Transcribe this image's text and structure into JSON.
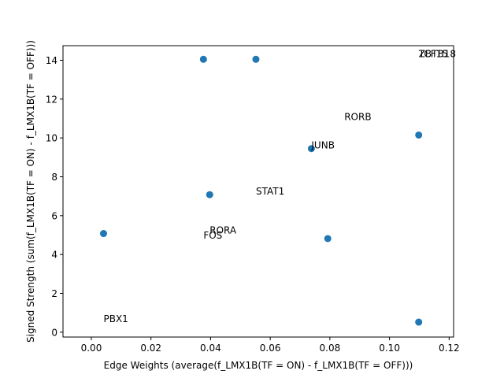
{
  "chart_data": {
    "type": "scatter",
    "title": "",
    "xlabel": "Edge Weights (average(f_LMX1B(TF = ON) - f_LMX1B(TF = OFF)))",
    "ylabel": "Signed Strength (sum(f_LMX1B(TF = ON) - f_LMX1B(TF = OFF)))",
    "xlim": [
      -0.0095,
      0.1215
    ],
    "ylim": [
      -0.25,
      14.75
    ],
    "xticks": [
      0.0,
      0.02,
      0.04,
      0.06,
      0.08,
      0.1,
      0.12
    ],
    "xtick_labels": [
      "0.00",
      "0.02",
      "0.04",
      "0.06",
      "0.08",
      "0.10",
      "0.12"
    ],
    "yticks": [
      0,
      2,
      4,
      6,
      8,
      10,
      12,
      14
    ],
    "ytick_labels": [
      "0",
      "2",
      "4",
      "6",
      "8",
      "10",
      "12",
      "14"
    ],
    "grid": false,
    "point_color": "#1f77b4",
    "points": [
      {
        "x": 0.0376,
        "y": 14.05
      },
      {
        "x": 0.0552,
        "y": 14.05
      },
      {
        "x": 0.0738,
        "y": 9.45
      },
      {
        "x": 0.1098,
        "y": 10.15
      },
      {
        "x": 0.0397,
        "y": 7.08
      },
      {
        "x": 0.0041,
        "y": 5.08
      },
      {
        "x": 0.0793,
        "y": 4.82
      },
      {
        "x": 0.1098,
        "y": 0.52
      }
    ],
    "annotations": [
      {
        "text": "ZBTB18",
        "x": 0.1098,
        "y": 14.05
      },
      {
        "text": "TCF15",
        "x": 0.1098,
        "y": 14.05
      },
      {
        "text": "RORB",
        "x": 0.0793,
        "y": 10.15
      },
      {
        "text": "JUNB",
        "x": 0.0738,
        "y": 9.45
      },
      {
        "text": "STAT1",
        "x": 0.0552,
        "y": 7.08
      },
      {
        "text": "RORA",
        "x": 0.0397,
        "y": 5.08
      },
      {
        "text": "FOS",
        "x": 0.0376,
        "y": 4.82
      },
      {
        "text": "PBX1",
        "x": 0.0041,
        "y": 0.52
      }
    ]
  }
}
